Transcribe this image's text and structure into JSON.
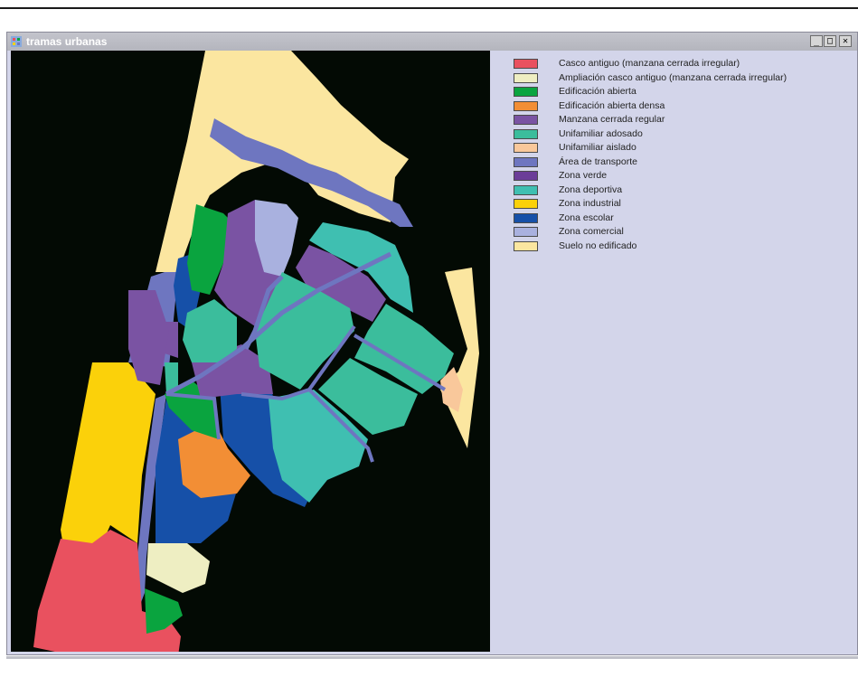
{
  "window": {
    "title": "tramas urbanas",
    "controls": {
      "minimize": "_",
      "maximize": "□",
      "close": "✕"
    }
  },
  "legend": [
    {
      "label": "Casco antiguo (manzana cerrada irregular)",
      "color": "#e9515f"
    },
    {
      "label": "Ampliación casco antiguo (manzana cerrada irregular)",
      "color": "#eeeec2"
    },
    {
      "label": "Edificación abierta",
      "color": "#0aa43f"
    },
    {
      "label": "Edificación abierta densa",
      "color": "#f28e35"
    },
    {
      "label": "Manzana cerrada regular",
      "color": "#7a53a3"
    },
    {
      "label": "Unifamiliar adosado",
      "color": "#3bbd9c"
    },
    {
      "label": "Unifamiliar aislado",
      "color": "#f9c89b"
    },
    {
      "label": "Área de transporte",
      "color": "#6e76c0"
    },
    {
      "label": "Zona verde",
      "color": "#6b3d98"
    },
    {
      "label": "Zona deportiva",
      "color": "#3fbfb1"
    },
    {
      "label": "Zona industrial",
      "color": "#fbd10a"
    },
    {
      "label": "Zona escolar",
      "color": "#1650a8"
    },
    {
      "label": "Zona comercial",
      "color": "#a9b1df"
    },
    {
      "label": "Suelo no edificado",
      "color": "#fbe6a0"
    }
  ]
}
